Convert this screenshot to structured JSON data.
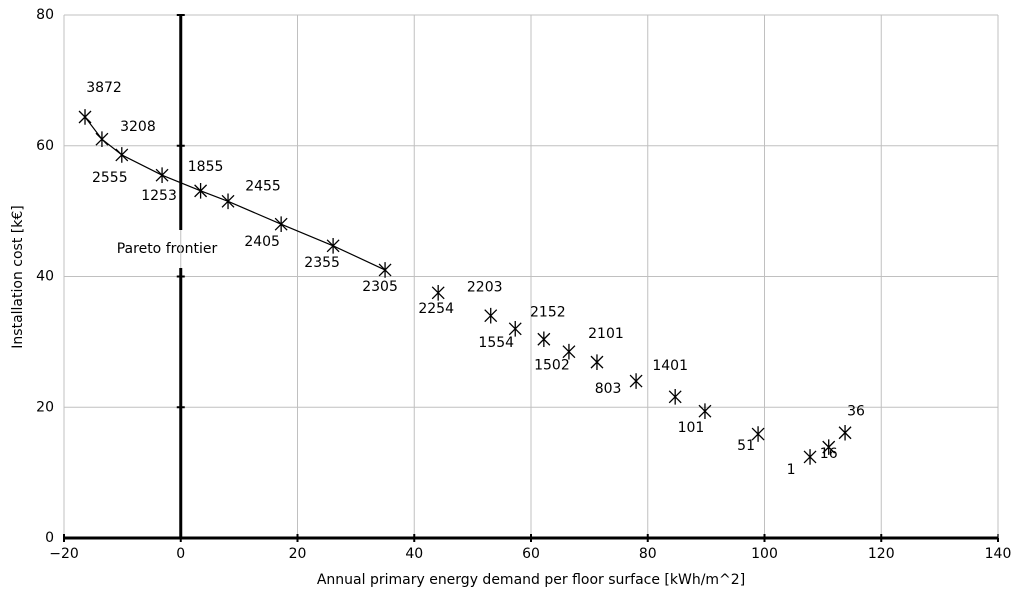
{
  "chart_data": {
    "type": "scatter",
    "x_label": "Annual primary energy demand per floor surface [kWh/m^2]",
    "y_label": "Installation cost [k€]",
    "annotation": "Pareto frontier",
    "xlim": [
      -20,
      140
    ],
    "xticks": [
      {
        "value": -20,
        "label": "−20"
      },
      0,
      20,
      40,
      60,
      80,
      100,
      120,
      140
    ],
    "ylim": [
      0,
      80
    ],
    "yticks": [
      0,
      20,
      40,
      60,
      80
    ],
    "grid": true,
    "series": [
      {
        "color": "#000000",
        "line": true,
        "x": [
          -16.4,
          -13.5,
          -10.1,
          -3.2,
          3.4,
          8.1,
          17.2,
          26.1,
          35.0
        ],
        "values": [
          64.4,
          61.0,
          58.6,
          55.5,
          53.1,
          51.5,
          48.0,
          44.7,
          41.0
        ],
        "point_labels": [
          "3872",
          "3208",
          "2555",
          "1253",
          "1855",
          "2455",
          "2405",
          "2355",
          "2305"
        ]
      },
      {
        "color": "#000000",
        "line": false,
        "x": [
          44.1,
          53.1,
          57.3,
          62.2,
          66.5,
          71.3,
          78.0,
          84.7,
          89.8,
          98.9,
          107.8,
          111.0,
          113.8
        ],
        "values": [
          37.5,
          34.0,
          32.0,
          30.4,
          28.5,
          26.9,
          24.0,
          21.6,
          19.4,
          15.9,
          12.4,
          13.9,
          16.1
        ],
        "point_labels": [
          "2254",
          "2203",
          "1554",
          "2152",
          "1502",
          "2101",
          "803",
          "1401",
          "101",
          "51",
          "1",
          "16",
          "36"
        ]
      }
    ]
  }
}
